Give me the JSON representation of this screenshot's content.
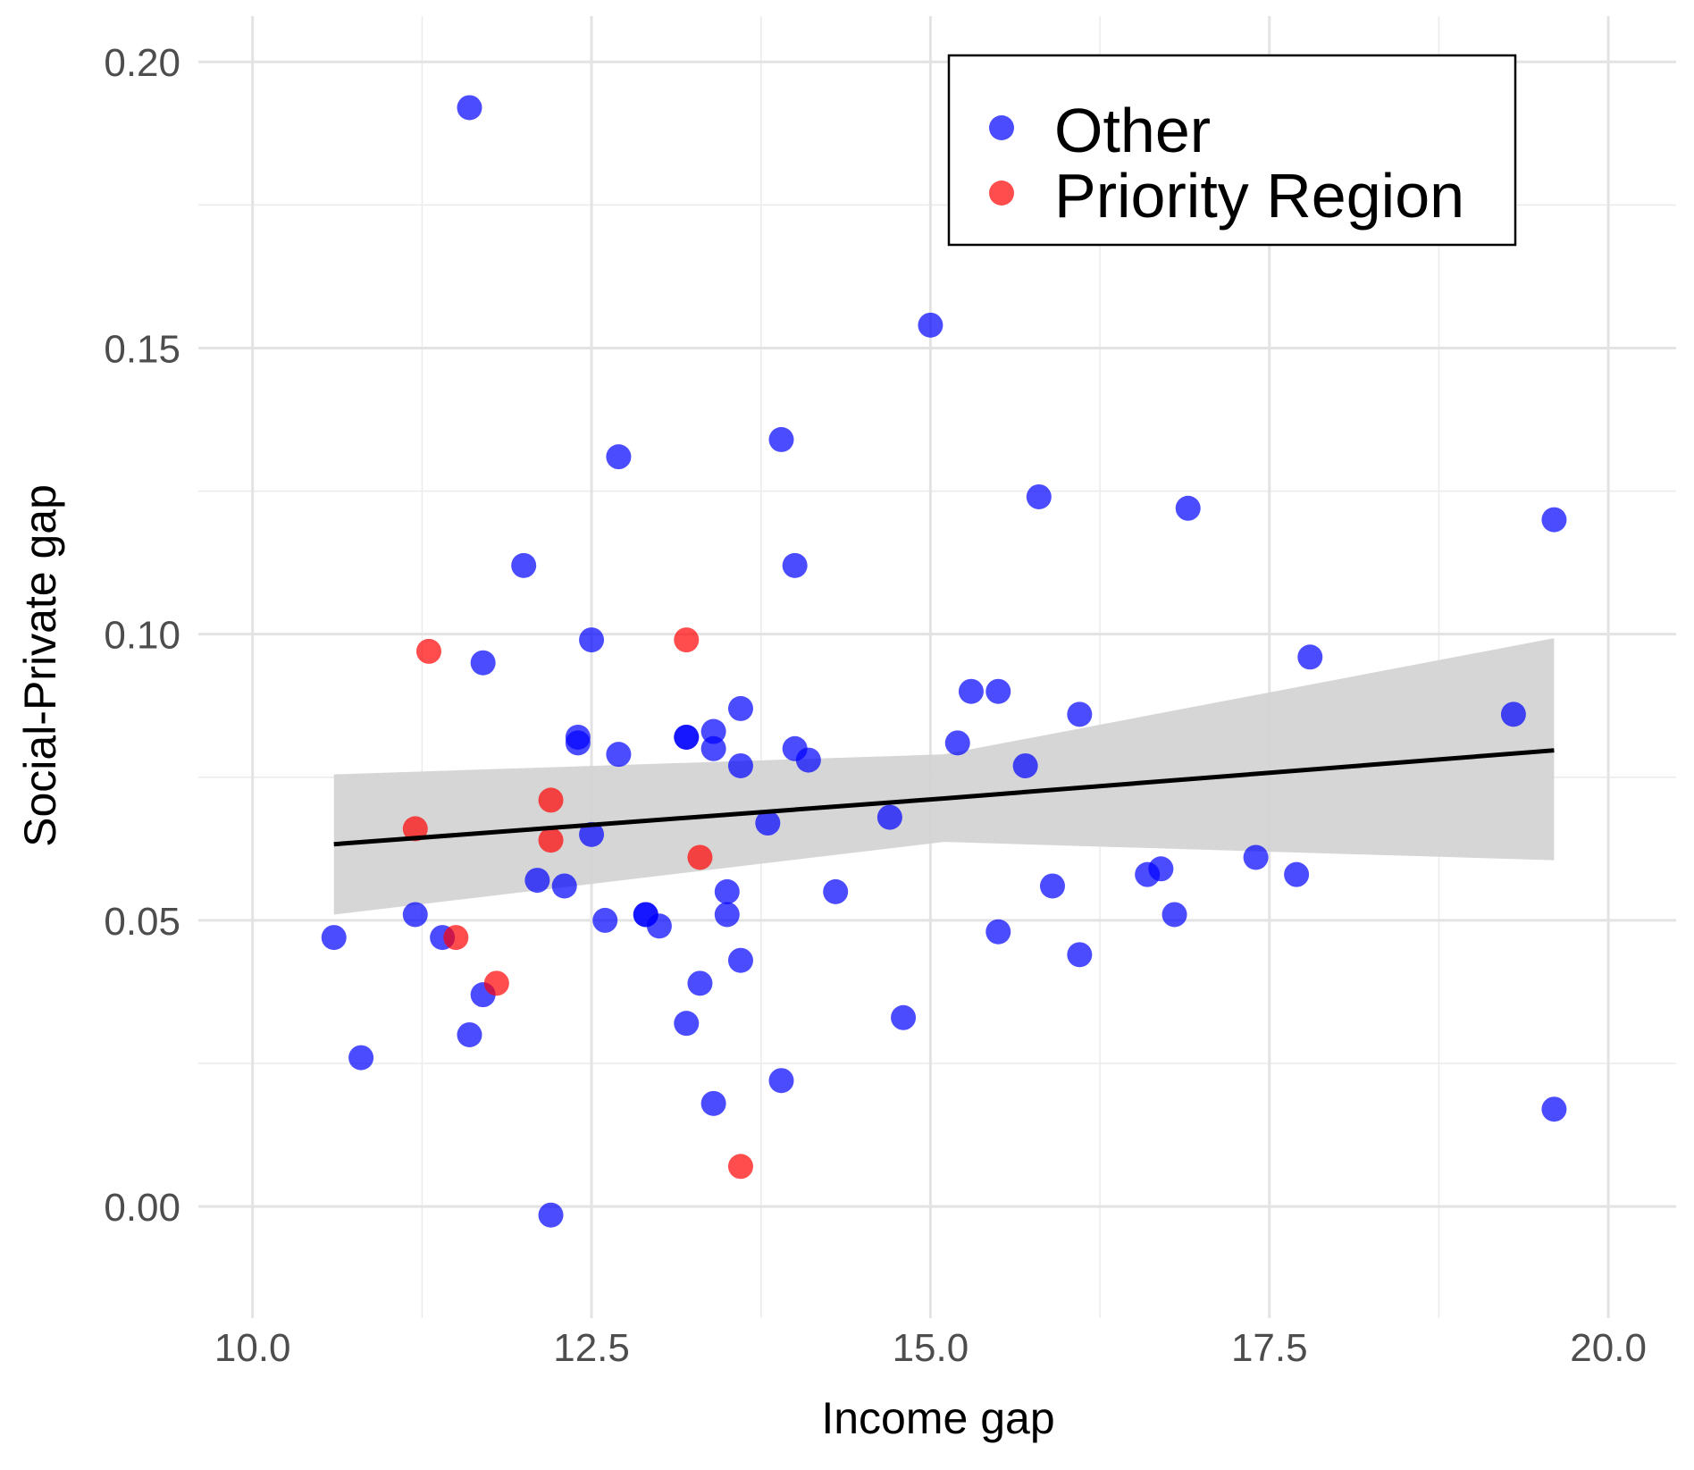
{
  "chart_data": {
    "type": "scatter",
    "title": "",
    "xlabel": "Income gap",
    "ylabel": "Social-Private gap",
    "xlim": [
      9.6,
      20.5
    ],
    "ylim": [
      -0.0195,
      0.208
    ],
    "xticks": [
      "10.0",
      "12.5",
      "15.0",
      "17.5",
      "20.0"
    ],
    "yticks": [
      "0.00",
      "0.05",
      "0.10",
      "0.15",
      "0.20"
    ],
    "grid": true,
    "legend_position": "top-right",
    "series": [
      {
        "name": "Other",
        "color": "#0000ff",
        "points": [
          [
            11.6,
            0.192
          ],
          [
            15.0,
            0.154
          ],
          [
            13.9,
            0.134
          ],
          [
            12.7,
            0.131
          ],
          [
            15.8,
            0.124
          ],
          [
            16.9,
            0.122
          ],
          [
            19.6,
            0.12
          ],
          [
            12.0,
            0.112
          ],
          [
            14.0,
            0.112
          ],
          [
            12.5,
            0.099
          ],
          [
            11.7,
            0.095
          ],
          [
            17.8,
            0.096
          ],
          [
            15.3,
            0.09
          ],
          [
            15.5,
            0.09
          ],
          [
            13.6,
            0.087
          ],
          [
            16.1,
            0.086
          ],
          [
            19.3,
            0.086
          ],
          [
            13.4,
            0.083
          ],
          [
            12.4,
            0.082
          ],
          [
            12.4,
            0.081
          ],
          [
            13.2,
            0.082
          ],
          [
            13.2,
            0.082
          ],
          [
            13.4,
            0.08
          ],
          [
            14.0,
            0.08
          ],
          [
            15.2,
            0.081
          ],
          [
            12.7,
            0.079
          ],
          [
            14.1,
            0.078
          ],
          [
            13.6,
            0.077
          ],
          [
            15.7,
            0.077
          ],
          [
            14.7,
            0.068
          ],
          [
            13.8,
            0.067
          ],
          [
            12.5,
            0.065
          ],
          [
            17.4,
            0.061
          ],
          [
            16.6,
            0.058
          ],
          [
            16.7,
            0.059
          ],
          [
            17.7,
            0.058
          ],
          [
            12.1,
            0.057
          ],
          [
            12.3,
            0.056
          ],
          [
            15.9,
            0.056
          ],
          [
            14.3,
            0.055
          ],
          [
            13.5,
            0.055
          ],
          [
            11.2,
            0.051
          ],
          [
            12.9,
            0.051
          ],
          [
            12.9,
            0.051
          ],
          [
            13.5,
            0.051
          ],
          [
            16.8,
            0.051
          ],
          [
            12.6,
            0.05
          ],
          [
            13.0,
            0.049
          ],
          [
            15.5,
            0.048
          ],
          [
            11.4,
            0.047
          ],
          [
            10.6,
            0.047
          ],
          [
            16.1,
            0.044
          ],
          [
            13.6,
            0.043
          ],
          [
            13.3,
            0.039
          ],
          [
            11.7,
            0.037
          ],
          [
            14.8,
            0.033
          ],
          [
            13.2,
            0.032
          ],
          [
            11.6,
            0.03
          ],
          [
            10.8,
            0.026
          ],
          [
            13.9,
            0.022
          ],
          [
            13.4,
            0.018
          ],
          [
            19.6,
            0.017
          ],
          [
            12.2,
            -0.0015
          ]
        ]
      },
      {
        "name": "Priority Region",
        "color": "#ff0000",
        "points": [
          [
            11.3,
            0.097
          ],
          [
            13.2,
            0.099
          ],
          [
            12.2,
            0.071
          ],
          [
            11.2,
            0.066
          ],
          [
            12.2,
            0.064
          ],
          [
            13.3,
            0.061
          ],
          [
            11.5,
            0.047
          ],
          [
            11.8,
            0.039
          ],
          [
            13.6,
            0.007
          ]
        ]
      }
    ],
    "trend_line": {
      "color": "#000000",
      "band_color": "#d3d3d3",
      "x": [
        10.6,
        15.1,
        19.6
      ],
      "y": [
        0.0633,
        0.0713,
        0.0797
      ],
      "ci_lower": [
        0.051,
        0.0637,
        0.0605
      ],
      "ci_upper": [
        0.0755,
        0.079,
        0.0993
      ]
    }
  }
}
